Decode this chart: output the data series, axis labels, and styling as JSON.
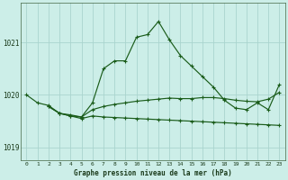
{
  "title": "Graphe pression niveau de la mer (hPa)",
  "bg_color": "#cceee8",
  "grid_color": "#aad4ce",
  "line_color": "#1a5c1a",
  "xlim": [
    -0.5,
    23.5
  ],
  "ylim": [
    1018.75,
    1021.75
  ],
  "yticks": [
    1019,
    1020,
    1021
  ],
  "xticks": [
    0,
    1,
    2,
    3,
    4,
    5,
    6,
    7,
    8,
    9,
    10,
    11,
    12,
    13,
    14,
    15,
    16,
    17,
    18,
    19,
    20,
    21,
    22,
    23
  ],
  "hours": [
    0,
    1,
    2,
    3,
    4,
    5,
    6,
    7,
    8,
    9,
    10,
    11,
    12,
    13,
    14,
    15,
    16,
    17,
    18,
    19,
    20,
    21,
    22,
    23
  ],
  "line1": [
    1020.0,
    1019.85,
    1019.8,
    1019.65,
    1019.6,
    1019.58,
    1019.85,
    1020.5,
    1020.65,
    1020.65,
    1021.1,
    1021.15,
    1021.4,
    1021.05,
    1020.75,
    1020.55,
    1020.35,
    1020.15,
    1019.9,
    1019.75,
    1019.72,
    1019.85,
    1019.72,
    1020.2
  ],
  "line2_x": [
    2,
    3,
    4,
    5,
    6,
    7,
    8,
    9,
    10,
    11,
    12,
    13,
    14,
    15,
    16,
    17,
    18,
    19,
    20,
    21,
    22,
    23
  ],
  "line2_y": [
    1019.78,
    1019.65,
    1019.62,
    1019.58,
    1019.72,
    1019.78,
    1019.82,
    1019.85,
    1019.88,
    1019.9,
    1019.92,
    1019.94,
    1019.93,
    1019.93,
    1019.95,
    1019.95,
    1019.93,
    1019.9,
    1019.88,
    1019.87,
    1019.92,
    1020.05
  ],
  "line3_x": [
    2,
    3,
    4,
    5,
    6,
    7,
    8,
    9,
    10,
    11,
    12,
    13,
    14,
    15,
    16,
    17,
    18,
    19,
    20,
    21,
    22,
    23
  ],
  "line3_y": [
    1019.78,
    1019.65,
    1019.6,
    1019.55,
    1019.6,
    1019.58,
    1019.57,
    1019.56,
    1019.55,
    1019.54,
    1019.53,
    1019.52,
    1019.51,
    1019.5,
    1019.49,
    1019.48,
    1019.47,
    1019.46,
    1019.45,
    1019.44,
    1019.43,
    1019.42
  ]
}
